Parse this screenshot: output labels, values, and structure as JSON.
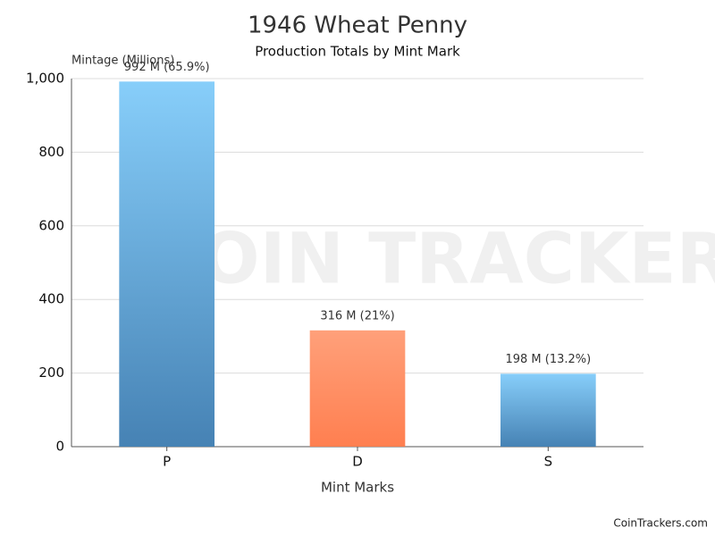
{
  "chart_data": {
    "type": "bar",
    "title": "1946 Wheat Penny",
    "subtitle": "Production Totals by Mint Mark",
    "y_label": "Mintage (Millions)",
    "x_label": "Mint Marks",
    "categories": [
      "P",
      "D",
      "S"
    ],
    "values": [
      992,
      316,
      198
    ],
    "value_labels": [
      "992 M (65.9%)",
      "316 M (21%)",
      "198 M (13.2%)"
    ],
    "colors": [
      [
        "#87cefa",
        "#4682b4"
      ],
      [
        "#ffa07a",
        "#ff7f50"
      ],
      [
        "#87cefa",
        "#4682b4"
      ]
    ],
    "ylim": [
      0,
      1000
    ],
    "yticks": [
      0,
      200,
      400,
      600,
      800,
      {
        "value": 1000,
        "label": "1,000"
      }
    ],
    "grid": true,
    "watermark": "COIN TRACKERS",
    "footer": "CoinTrackers.com"
  }
}
